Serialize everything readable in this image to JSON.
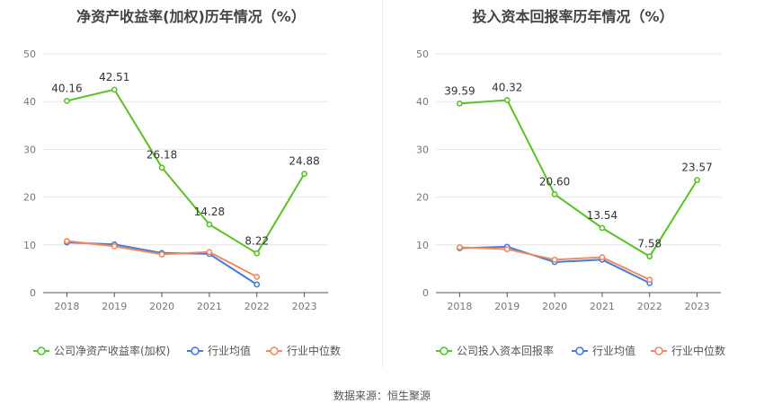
{
  "source_label": "数据来源：恒生聚源",
  "chart_data": [
    {
      "type": "line",
      "title": "净资产收益率(加权)历年情况（%）",
      "x": [
        "2018",
        "2019",
        "2020",
        "2021",
        "2022",
        "2023"
      ],
      "yticks": [
        "0",
        "10",
        "20",
        "30",
        "40",
        "50"
      ],
      "ylim": [
        0,
        50
      ],
      "grid": true,
      "legend_position": "bottom",
      "series": [
        {
          "name": "公司净资产收益率(加权)",
          "color": "#5ac126",
          "values": [
            40.16,
            42.51,
            26.18,
            14.28,
            8.22,
            24.88
          ],
          "labels": [
            "40.16",
            "42.51",
            "26.18",
            "14.28",
            "8.22",
            "24.88"
          ]
        },
        {
          "name": "行业均值",
          "color": "#4a7ad8",
          "values": [
            10.5,
            10.1,
            8.3,
            8.1,
            1.7,
            null
          ]
        },
        {
          "name": "行业中位数",
          "color": "#ef8a63",
          "values": [
            10.8,
            9.7,
            8.0,
            8.5,
            3.3,
            null
          ]
        }
      ]
    },
    {
      "type": "line",
      "title": "投入资本回报率历年情况（%）",
      "x": [
        "2018",
        "2019",
        "2020",
        "2021",
        "2022",
        "2023"
      ],
      "yticks": [
        "0",
        "10",
        "20",
        "30",
        "40",
        "50"
      ],
      "ylim": [
        0,
        50
      ],
      "grid": true,
      "legend_position": "bottom",
      "series": [
        {
          "name": "公司投入资本回报率",
          "color": "#5ac126",
          "values": [
            39.59,
            40.32,
            20.6,
            13.54,
            7.58,
            23.57
          ],
          "labels": [
            "39.59",
            "40.32",
            "20.60",
            "13.54",
            "7.58",
            "23.57"
          ]
        },
        {
          "name": "行业均值",
          "color": "#4a7ad8",
          "values": [
            9.3,
            9.6,
            6.4,
            6.9,
            2.0,
            null
          ]
        },
        {
          "name": "行业中位数",
          "color": "#ef8a63",
          "values": [
            9.5,
            9.1,
            6.9,
            7.4,
            2.7,
            null
          ]
        }
      ]
    }
  ]
}
